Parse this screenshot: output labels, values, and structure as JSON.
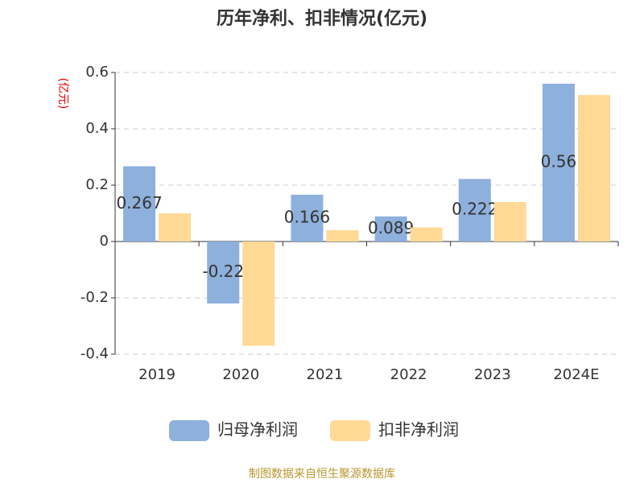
{
  "chart_data": {
    "type": "bar",
    "title": "历年净利、扣非情况(亿元)",
    "y_label": "(亿元)",
    "categories": [
      "2019",
      "2020",
      "2021",
      "2022",
      "2023",
      "2024E"
    ],
    "series": [
      {
        "name": "归母净利润",
        "color": "#8eb0dc",
        "values": [
          0.267,
          -0.22,
          0.166,
          0.089,
          0.222,
          0.56
        ]
      },
      {
        "name": "扣非净利润",
        "color": "#ffd995",
        "values": [
          0.1,
          -0.37,
          0.04,
          0.05,
          0.14,
          0.52
        ]
      }
    ],
    "ylim": [
      -0.4,
      0.6
    ],
    "yticks": [
      -0.4,
      -0.2,
      0,
      0.2,
      0.4,
      0.6
    ],
    "grid": true,
    "source": "制图数据来自恒生聚源数据库"
  }
}
